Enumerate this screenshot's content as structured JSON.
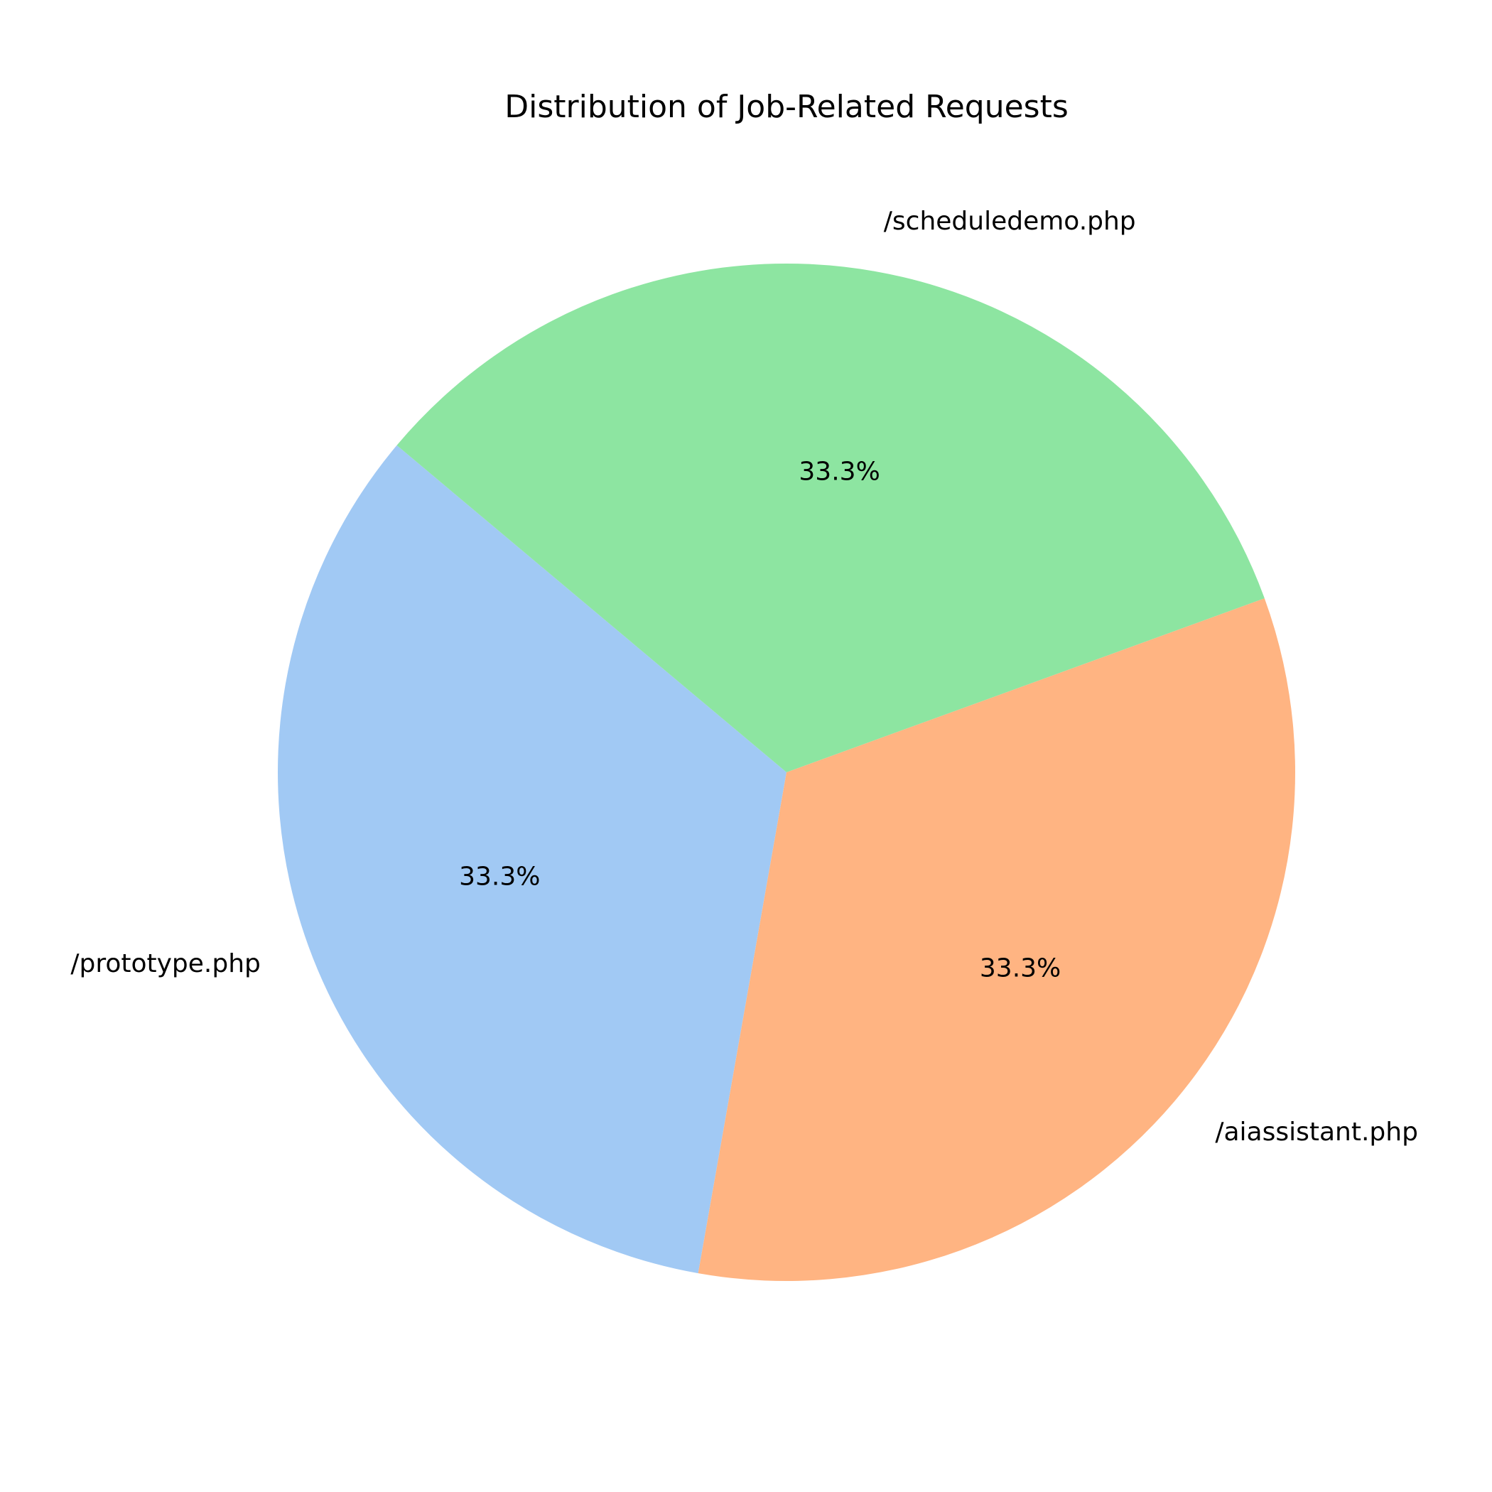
{
  "chart_data": {
    "type": "pie",
    "title": "Distribution of Job-Related Requests",
    "slices": [
      {
        "label": "/prototype.php",
        "value": 33.3,
        "pct_label": "33.3%",
        "color": "#a1c9f4"
      },
      {
        "label": "/aiassistant.php",
        "value": 33.3,
        "pct_label": "33.3%",
        "color": "#ffb482"
      },
      {
        "label": "/scheduledemo.php",
        "value": 33.3,
        "pct_label": "33.3%",
        "color": "#8de5a1"
      }
    ],
    "start_angle_deg": 140,
    "direction": "counterclockwise"
  }
}
